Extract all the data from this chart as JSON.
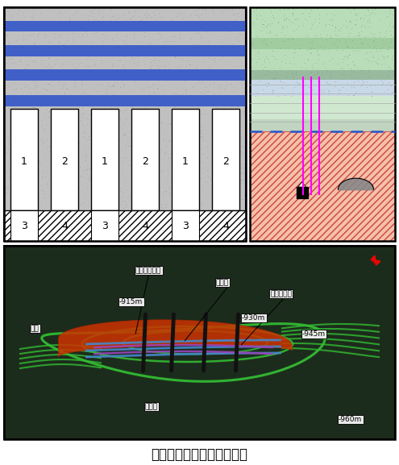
{
  "title": "下向分段充填连续开采技术",
  "title_fontsize": 12,
  "bg_color": "#ffffff",
  "blue_fill": "#4060c8",
  "green_3d": "#22aa22",
  "red_3d": "#cc3300",
  "blue_3d": "#4488cc",
  "purple_3d": "#9944aa",
  "annot_labels": [
    "中梁孔采矿区",
    "盘区柱",
    "机械采矿区",
    "溜井",
    "斜坡道"
  ],
  "depth_labels": [
    "-915m",
    "-930m",
    "-945m",
    "-960m"
  ],
  "stope_nums_top": [
    "1",
    "2",
    "1",
    "2",
    "1",
    "2"
  ],
  "stope_nums_bot": [
    "3",
    "4",
    "3",
    "4",
    "3",
    "4"
  ]
}
